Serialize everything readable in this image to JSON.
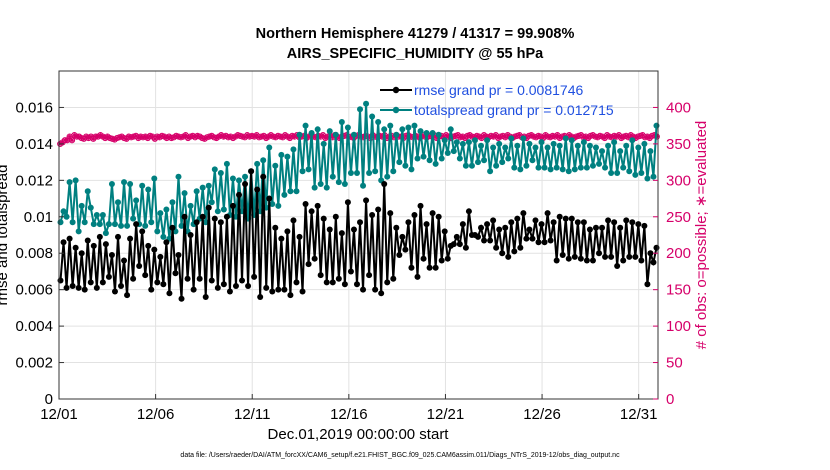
{
  "chart_data": {
    "type": "line",
    "title": "Northern Hemisphere 41279 / 41317 = 99.908%",
    "subtitle": "AIRS_SPECIFIC_HUMIDITY @ 55 hPa",
    "xlabel": "Dec.01,2019 00:00:00 start",
    "ylabel": "rmse and totalspread",
    "y2label": "# of obs: o=possible; ∗=evaluated",
    "footnote": "data file: /Users/raeder/DAI/ATM_forcXX/CAM6_setup/f.e21.FHIST_BGC.f09_025.CAM6assim.011/Diags_NTrS_2019-12/obs_diag_output.nc",
    "x_range_days": [
      1,
      32
    ],
    "ylim": [
      0,
      0.018
    ],
    "y2lim": [
      0,
      450
    ],
    "x_tick_labels": [
      "12/01",
      "12/06",
      "12/11",
      "12/16",
      "12/21",
      "12/26",
      "12/31"
    ],
    "x_tick_days": [
      1,
      6,
      11,
      16,
      21,
      26,
      31
    ],
    "y_ticks": [
      0,
      0.002,
      0.004,
      0.006,
      0.008,
      0.01,
      0.012,
      0.014,
      0.016
    ],
    "y_tick_labels": [
      "0",
      "0.002",
      "0.004",
      "0.006",
      "0.008",
      "0.01",
      "0.012",
      "0.014",
      "0.016"
    ],
    "y2_ticks": [
      0,
      50,
      100,
      150,
      200,
      250,
      300,
      350,
      400
    ],
    "y2_tick_labels": [
      "0",
      "50",
      "100",
      "150",
      "200",
      "250",
      "300",
      "350",
      "400"
    ],
    "grid": true,
    "legend_position": "top-right",
    "colors": {
      "rmse": "#000000",
      "totalspread": "#008080",
      "obs": "#d6006a",
      "legend_text": "#1f4fe0",
      "grid": "#e2e2e2"
    },
    "series": [
      {
        "name": "rmse",
        "legend": "rmse grand pr = 0.0081746",
        "values": [
          0.0065,
          0.0086,
          0.0061,
          0.0088,
          0.0062,
          0.0083,
          0.0061,
          0.008,
          0.006,
          0.0087,
          0.0064,
          0.0084,
          0.0061,
          0.0089,
          0.0064,
          0.0085,
          0.0067,
          0.0079,
          0.0059,
          0.0089,
          0.0062,
          0.0076,
          0.0057,
          0.0088,
          0.0066,
          0.0096,
          0.0073,
          0.0092,
          0.0068,
          0.0084,
          0.006,
          0.0082,
          0.0064,
          0.0078,
          0.0063,
          0.0086,
          0.0058,
          0.0094,
          0.0069,
          0.0079,
          0.0055,
          0.01,
          0.0066,
          0.009,
          0.006,
          0.0097,
          0.0066,
          0.01,
          0.0056,
          0.0105,
          0.0065,
          0.0099,
          0.0061,
          0.0097,
          0.0063,
          0.01,
          0.0059,
          0.0106,
          0.0062,
          0.0112,
          0.0065,
          0.0118,
          0.0062,
          0.0125,
          0.0067,
          0.0115,
          0.0056,
          0.0122,
          0.0061,
          0.011,
          0.0059,
          0.0094,
          0.006,
          0.0088,
          0.006,
          0.0092,
          0.0057,
          0.0098,
          0.0064,
          0.0089,
          0.0059,
          0.0107,
          0.0074,
          0.0103,
          0.0077,
          0.0106,
          0.0068,
          0.0099,
          0.0064,
          0.0093,
          0.0064,
          0.01,
          0.0066,
          0.0091,
          0.0063,
          0.0108,
          0.007,
          0.0093,
          0.0063,
          0.0097,
          0.006,
          0.0109,
          0.0068,
          0.0101,
          0.006,
          0.0104,
          0.0058,
          0.0118,
          0.0064,
          0.0102,
          0.0066,
          0.0094,
          0.0079,
          0.0089,
          0.0082,
          0.0097,
          0.0072,
          0.0101,
          0.0067,
          0.0106,
          0.0077,
          0.0096,
          0.0072,
          0.0102,
          0.0072,
          0.01,
          0.0076,
          0.0092,
          0.0077,
          0.0084,
          0.0085,
          0.0089,
          0.0085,
          0.0096,
          0.0083,
          0.0103,
          0.009,
          0.009,
          0.0089,
          0.0094,
          0.0087,
          0.0096,
          0.0087,
          0.0098,
          0.0083,
          0.0093,
          0.008,
          0.0094,
          0.0078,
          0.0097,
          0.0081,
          0.0099,
          0.0083,
          0.0102,
          0.0088,
          0.0093,
          0.0088,
          0.0098,
          0.0086,
          0.0096,
          0.0086,
          0.0102,
          0.0087,
          0.0097,
          0.0076,
          0.01,
          0.0079,
          0.0099,
          0.0077,
          0.0099,
          0.0078,
          0.0097,
          0.0077,
          0.0097,
          0.0076,
          0.0093,
          0.0076,
          0.0094,
          0.008,
          0.0094,
          0.0078,
          0.0098,
          0.0078,
          0.0097,
          0.0073,
          0.0094,
          0.0076,
          0.0098,
          0.0078,
          0.0097,
          0.0078,
          0.0096,
          0.0076,
          0.0095,
          0.0063,
          0.008,
          0.0075,
          0.0083
        ]
      },
      {
        "name": "totalspread",
        "legend": "totalspread grand pr = 0.012715",
        "values": [
          0.0097,
          0.0103,
          0.01,
          0.0119,
          0.0097,
          0.012,
          0.0092,
          0.0106,
          0.0097,
          0.0114,
          0.0105,
          0.0096,
          0.0101,
          0.0096,
          0.0101,
          0.0091,
          0.0096,
          0.0118,
          0.0096,
          0.0108,
          0.0095,
          0.0119,
          0.0095,
          0.0118,
          0.0099,
          0.0109,
          0.0096,
          0.0117,
          0.0095,
          0.0115,
          0.0097,
          0.0121,
          0.0092,
          0.0102,
          0.0089,
          0.0104,
          0.0088,
          0.0108,
          0.0092,
          0.0122,
          0.0095,
          0.0113,
          0.0092,
          0.0106,
          0.0096,
          0.0114,
          0.0099,
          0.0116,
          0.0097,
          0.0117,
          0.0108,
          0.0126,
          0.0103,
          0.0124,
          0.0104,
          0.0129,
          0.0101,
          0.0121,
          0.01,
          0.012,
          0.0103,
          0.0122,
          0.0099,
          0.0125,
          0.0101,
          0.0129,
          0.0103,
          0.0131,
          0.0105,
          0.0138,
          0.0107,
          0.0128,
          0.0106,
          0.0134,
          0.0112,
          0.0133,
          0.0114,
          0.0137,
          0.0114,
          0.0145,
          0.0125,
          0.015,
          0.0126,
          0.0146,
          0.0116,
          0.0148,
          0.0118,
          0.014,
          0.0116,
          0.0147,
          0.0122,
          0.0145,
          0.0119,
          0.0152,
          0.0118,
          0.0149,
          0.0124,
          0.0145,
          0.0124,
          0.0159,
          0.0117,
          0.0162,
          0.0124,
          0.0155,
          0.0125,
          0.0152,
          0.012,
          0.0148,
          0.0122,
          0.015,
          0.0125,
          0.0145,
          0.013,
          0.0148,
          0.0128,
          0.0149,
          0.0126,
          0.015,
          0.0132,
          0.0147,
          0.0133,
          0.0146,
          0.0131,
          0.0146,
          0.0129,
          0.0145,
          0.0132,
          0.0142,
          0.0135,
          0.0148,
          0.0136,
          0.0141,
          0.0132,
          0.014,
          0.0128,
          0.0141,
          0.0128,
          0.0142,
          0.013,
          0.0139,
          0.0131,
          0.0142,
          0.0125,
          0.0138,
          0.0128,
          0.014,
          0.013,
          0.0138,
          0.0132,
          0.0143,
          0.0127,
          0.0139,
          0.0126,
          0.0143,
          0.0128,
          0.014,
          0.0131,
          0.0138,
          0.0127,
          0.0141,
          0.0127,
          0.0138,
          0.0126,
          0.014,
          0.0127,
          0.0139,
          0.0126,
          0.0143,
          0.0125,
          0.0142,
          0.0126,
          0.0139,
          0.0127,
          0.0141,
          0.0127,
          0.0139,
          0.0128,
          0.0138,
          0.0129,
          0.0136,
          0.0127,
          0.0139,
          0.0124,
          0.0141,
          0.0124,
          0.0136,
          0.0127,
          0.0139,
          0.0125,
          0.0142,
          0.0123,
          0.0138,
          0.0124,
          0.014,
          0.0121,
          0.0136,
          0.0122,
          0.015
        ]
      },
      {
        "name": "obs_possible",
        "marker": "circle",
        "values": [
          350,
          352,
          355,
          355,
          360,
          355,
          362,
          360,
          360,
          358,
          357,
          360,
          358,
          360,
          357,
          360,
          360,
          362,
          360,
          358,
          360,
          358,
          357,
          356,
          358,
          359,
          360,
          358,
          357,
          360,
          359,
          360,
          361,
          358,
          360,
          359,
          360,
          358,
          361,
          360,
          357,
          360,
          359,
          361,
          360,
          358,
          360,
          358,
          359,
          361,
          360,
          359,
          360,
          362,
          358,
          360,
          361,
          359,
          361,
          360,
          358,
          357,
          359,
          360,
          361,
          359,
          358,
          360,
          362,
          360,
          361,
          359,
          360,
          358,
          360,
          362,
          361,
          360,
          359,
          362,
          360,
          361,
          360,
          362,
          359,
          360,
          361,
          358,
          360,
          362,
          360,
          359,
          361,
          360,
          359,
          362,
          360,
          358,
          361,
          360,
          362,
          359,
          360,
          361,
          358,
          360,
          362,
          360,
          359,
          361,
          360,
          362,
          358,
          360,
          361,
          359,
          362,
          360,
          358,
          360,
          361,
          362,
          359,
          360,
          358,
          361,
          362,
          360,
          359,
          361,
          360,
          358,
          362,
          360,
          359,
          361,
          360,
          362,
          358,
          360,
          361,
          359,
          362,
          360,
          360,
          358,
          361,
          362,
          360,
          359,
          361,
          360,
          358,
          362,
          360,
          359,
          361,
          360,
          362,
          358,
          360,
          361,
          359,
          362,
          360,
          358,
          360,
          361,
          362,
          359,
          360,
          358,
          361,
          362,
          360,
          359,
          361,
          360,
          358,
          362,
          360,
          359,
          361,
          360,
          362,
          358,
          360,
          361,
          359,
          362,
          360,
          358,
          360,
          361,
          362,
          359,
          360,
          358,
          361,
          362,
          360,
          359,
          361,
          360,
          358,
          362,
          360,
          359,
          361,
          360,
          362,
          358,
          360,
          361,
          359,
          362,
          360,
          358,
          360,
          361,
          362,
          359,
          360,
          358,
          361,
          362,
          360,
          359,
          361,
          360,
          358,
          362,
          360,
          359,
          361,
          360,
          362,
          358,
          360,
          361,
          359,
          362,
          360,
          358,
          360,
          361,
          362,
          359,
          360,
          358,
          361,
          362,
          360
        ]
      },
      {
        "name": "obs_evaluated",
        "marker": "asterisk",
        "values": [
          350,
          352,
          355,
          355,
          360,
          355,
          362,
          360,
          360,
          358,
          357,
          360,
          358,
          360,
          357,
          360,
          360,
          362,
          360,
          358,
          360,
          358,
          357,
          356,
          358,
          359,
          360,
          358,
          357,
          360,
          359,
          360,
          361,
          358,
          360,
          359,
          360,
          358,
          361,
          360,
          357,
          360,
          359,
          361,
          360,
          358,
          360,
          358,
          359,
          361,
          360,
          359,
          360,
          362,
          358,
          360,
          361,
          359,
          361,
          360,
          358,
          357,
          359,
          360,
          361,
          359,
          358,
          360,
          362,
          360,
          361,
          359,
          360,
          358,
          360,
          362,
          361,
          360,
          359,
          362,
          360,
          361,
          360,
          362,
          359,
          360,
          361,
          358,
          360,
          362,
          360,
          359,
          361,
          360,
          359,
          362,
          360,
          358,
          361,
          360,
          362,
          359,
          360,
          361,
          358,
          360,
          362,
          360,
          359,
          361,
          360,
          362,
          358,
          360,
          361,
          359,
          362,
          360,
          358,
          360,
          361,
          362,
          359,
          360,
          358,
          361,
          362,
          360,
          359,
          361,
          360,
          358,
          362,
          360,
          359,
          361,
          360,
          362,
          358,
          360,
          361,
          359,
          362,
          360,
          360,
          358,
          361,
          362,
          360,
          359,
          361,
          360,
          358,
          362,
          360,
          359,
          361,
          360,
          362,
          358,
          360,
          361,
          359,
          362,
          360,
          358,
          360,
          361,
          362,
          359,
          360,
          358,
          361,
          362,
          360,
          359,
          361,
          360,
          358,
          362,
          360,
          359,
          361,
          360,
          362,
          358,
          360,
          361,
          359,
          362,
          360,
          358,
          360,
          361,
          362,
          359,
          360,
          358,
          361,
          362,
          360,
          359,
          361,
          360,
          358,
          362,
          360,
          359,
          361,
          360,
          362,
          358,
          360,
          361,
          359,
          362,
          360,
          358,
          360,
          361,
          362,
          359,
          360,
          358,
          361,
          362,
          360,
          359,
          361,
          360,
          358,
          362,
          360,
          359,
          361,
          360,
          362,
          358,
          360,
          361,
          359,
          362,
          360,
          358,
          360,
          361,
          362,
          359,
          360,
          358,
          361,
          362,
          360
        ]
      }
    ]
  }
}
